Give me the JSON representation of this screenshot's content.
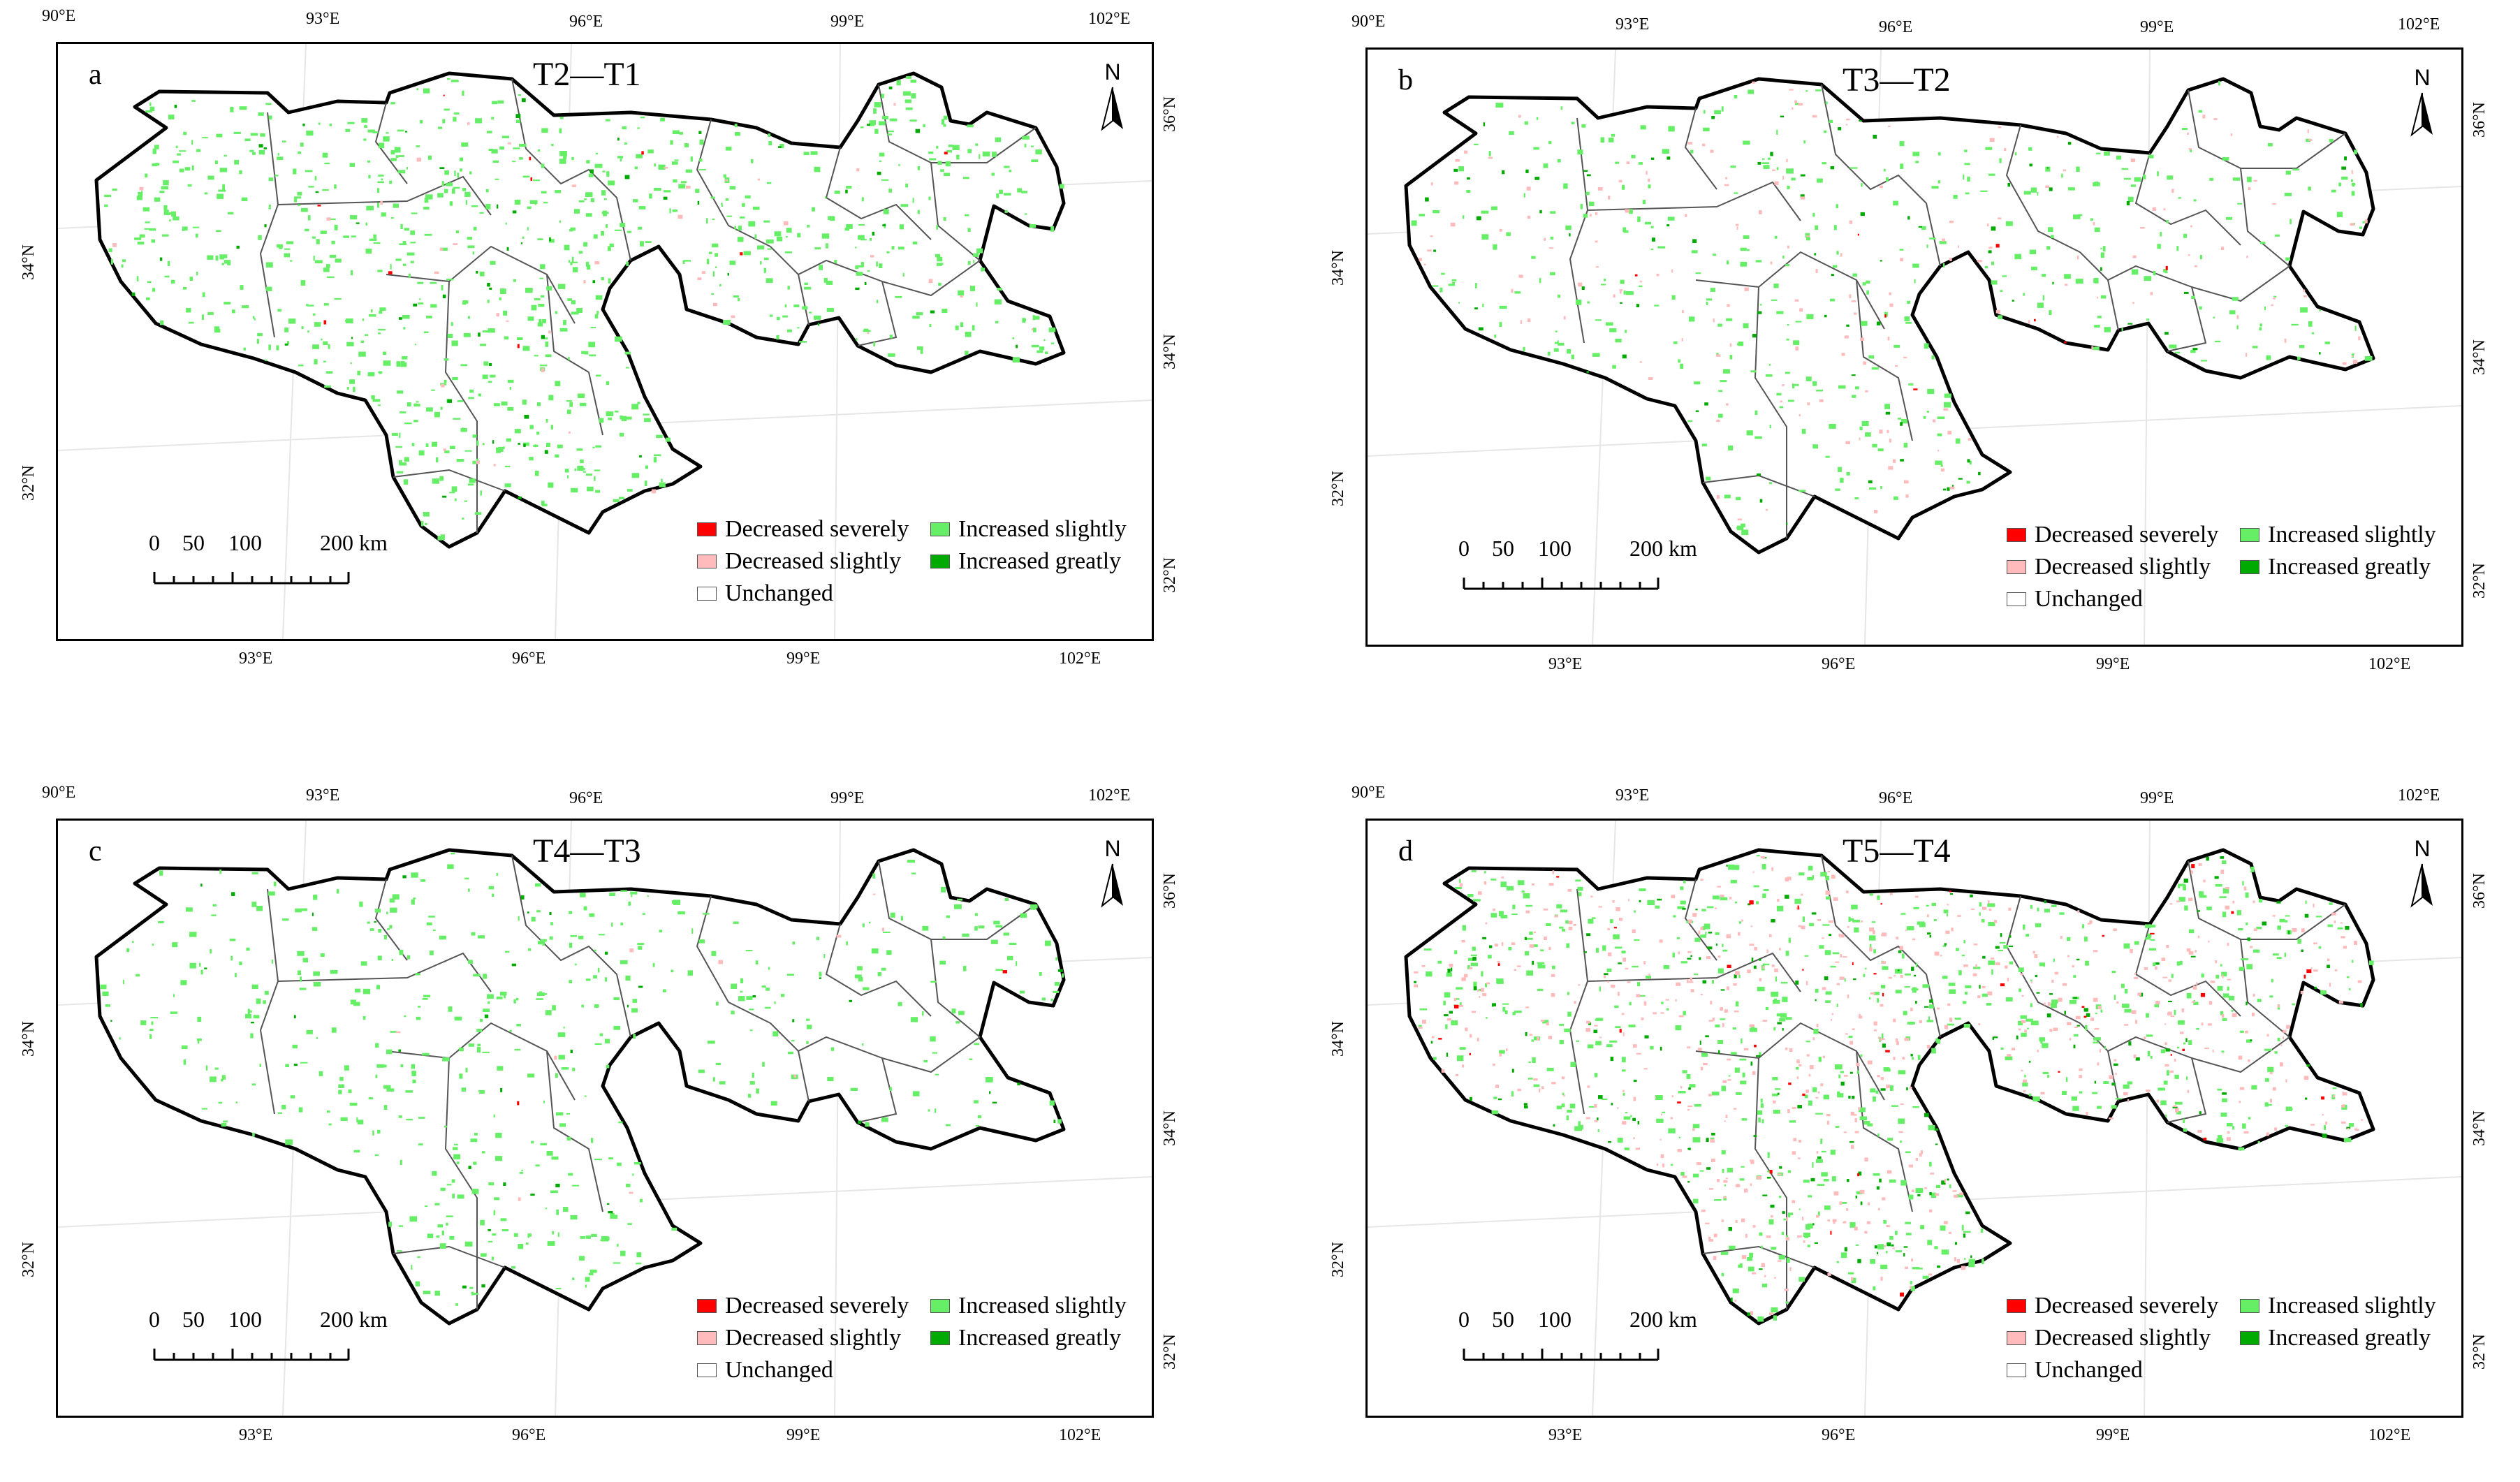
{
  "panels": [
    {
      "letter": "a",
      "title": "T2—T1"
    },
    {
      "letter": "b",
      "title": "T3—T2"
    },
    {
      "letter": "c",
      "title": "T4—T3"
    },
    {
      "letter": "d",
      "title": "T5—T4"
    }
  ],
  "top_lon_ticks": [
    "90°E",
    "93°E",
    "96°E",
    "99°E",
    "102°E"
  ],
  "bottom_lon_ticks": [
    "93°E",
    "96°E",
    "99°E",
    "102°E"
  ],
  "left_lat_ticks": [
    "34°N",
    "32°N"
  ],
  "right_lat_ticks": [
    "36°N",
    "34°N",
    "32°N"
  ],
  "north_label": "N",
  "scale_bar": {
    "labels": [
      "0",
      "50",
      "100",
      "200 km"
    ]
  },
  "legend": [
    {
      "label": "Decreased severely",
      "color": "#ff0000"
    },
    {
      "label": "Increased slightly",
      "color": "#66ee66"
    },
    {
      "label": "Decreased slightly",
      "color": "#ffbbbb"
    },
    {
      "label": "Increased greatly",
      "color": "#00aa00"
    },
    {
      "label": "Unchanged",
      "color": "#ffffff"
    }
  ],
  "colors": {
    "decreased_severely": "#ff0000",
    "decreased_slightly": "#ffbbbb",
    "increased_slightly": "#66ee66",
    "increased_greatly": "#00aa00",
    "unchanged": "#ffffff"
  }
}
